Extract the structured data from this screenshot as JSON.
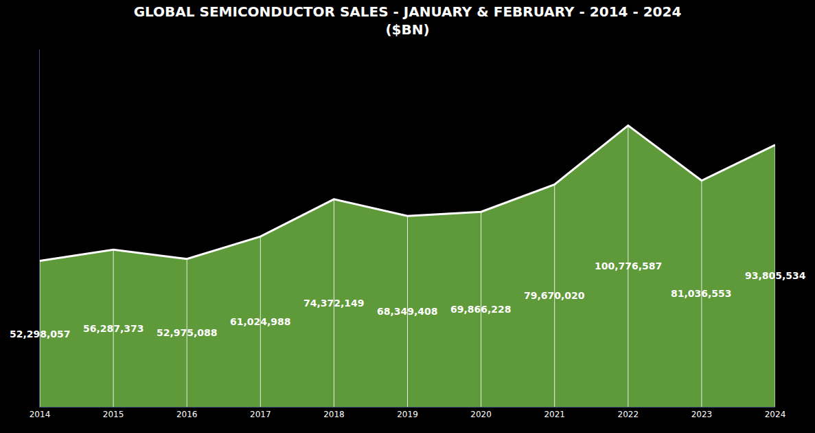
{
  "chart_data": {
    "type": "area",
    "title": "GLOBAL SEMICONDUCTOR SALES - JANUARY & FEBRUARY - 2014 - 2024",
    "subtitle": "($BN)",
    "categories": [
      "2014",
      "2015",
      "2016",
      "2017",
      "2018",
      "2019",
      "2020",
      "2021",
      "2022",
      "2023",
      "2024"
    ],
    "values": [
      52298057,
      56287373,
      52975088,
      61024988,
      74372149,
      68349408,
      69866228,
      79670020,
      100776587,
      81036553,
      93805534
    ],
    "value_labels": [
      "52,298,057",
      "56,287,373",
      "52,975,088",
      "61,024,988",
      "74,372,149",
      "68,349,408",
      "69,866,228",
      "79,670,020",
      "100,776,587",
      "81,036,553",
      "93,805,534"
    ],
    "color": "#5f9a3a",
    "ylim": [
      0,
      128000000
    ],
    "data_labels": true,
    "tick_labels": "x",
    "grid": false
  }
}
